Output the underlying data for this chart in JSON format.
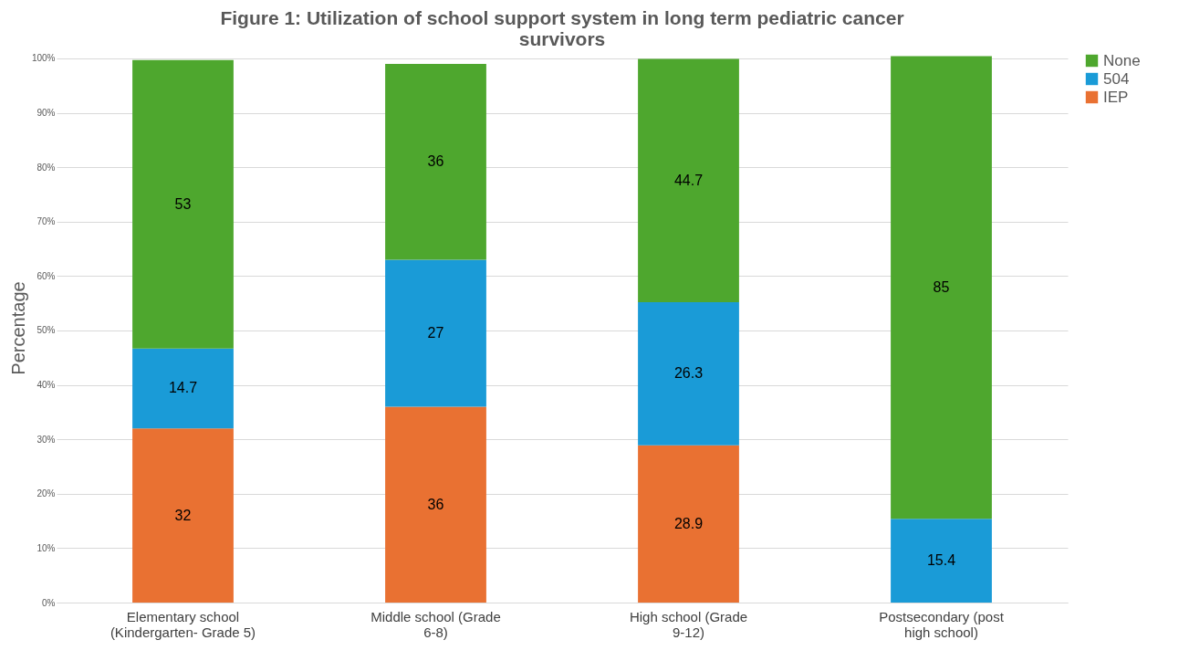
{
  "chart_data": {
    "type": "bar",
    "stacked": true,
    "title": "Figure 1: Utilization of school support system in long term pediatric cancer survivors",
    "ylabel": "Percentage",
    "categories": [
      "Elementary school (Kindergarten- Grade 5)",
      "Middle school (Grade 6-8)",
      "High school (Grade 9-12)",
      "Postsecondary (post high school)"
    ],
    "series": [
      {
        "name": "IEP",
        "color": "#e97132",
        "values": [
          32,
          36,
          28.9,
          0
        ],
        "value_labels": [
          "32",
          "36",
          "28.9",
          null
        ]
      },
      {
        "name": "504",
        "color": "#1a9bd7",
        "values": [
          14.7,
          27,
          26.3,
          15.4
        ],
        "value_labels": [
          "14.7",
          "27",
          "26.3",
          "15.4"
        ]
      },
      {
        "name": "None",
        "color": "#4ea72e",
        "values": [
          53,
          36,
          44.7,
          85
        ],
        "value_labels": [
          "53",
          "36",
          "44.7",
          "85"
        ]
      }
    ],
    "ylim": [
      0,
      101
    ],
    "yticks": [
      {
        "value": 0,
        "label": "0%"
      },
      {
        "value": 10,
        "label": "10%"
      },
      {
        "value": 20,
        "label": "20%"
      },
      {
        "value": 30,
        "label": "30%"
      },
      {
        "value": 40,
        "label": "40%"
      },
      {
        "value": 50,
        "label": "50%"
      },
      {
        "value": 60,
        "label": "60%"
      },
      {
        "value": 70,
        "label": "70%"
      },
      {
        "value": 80,
        "label": "80%"
      },
      {
        "value": 90,
        "label": "90%"
      },
      {
        "value": 100,
        "label": "100%"
      }
    ],
    "grid": "y",
    "legend": "right"
  }
}
